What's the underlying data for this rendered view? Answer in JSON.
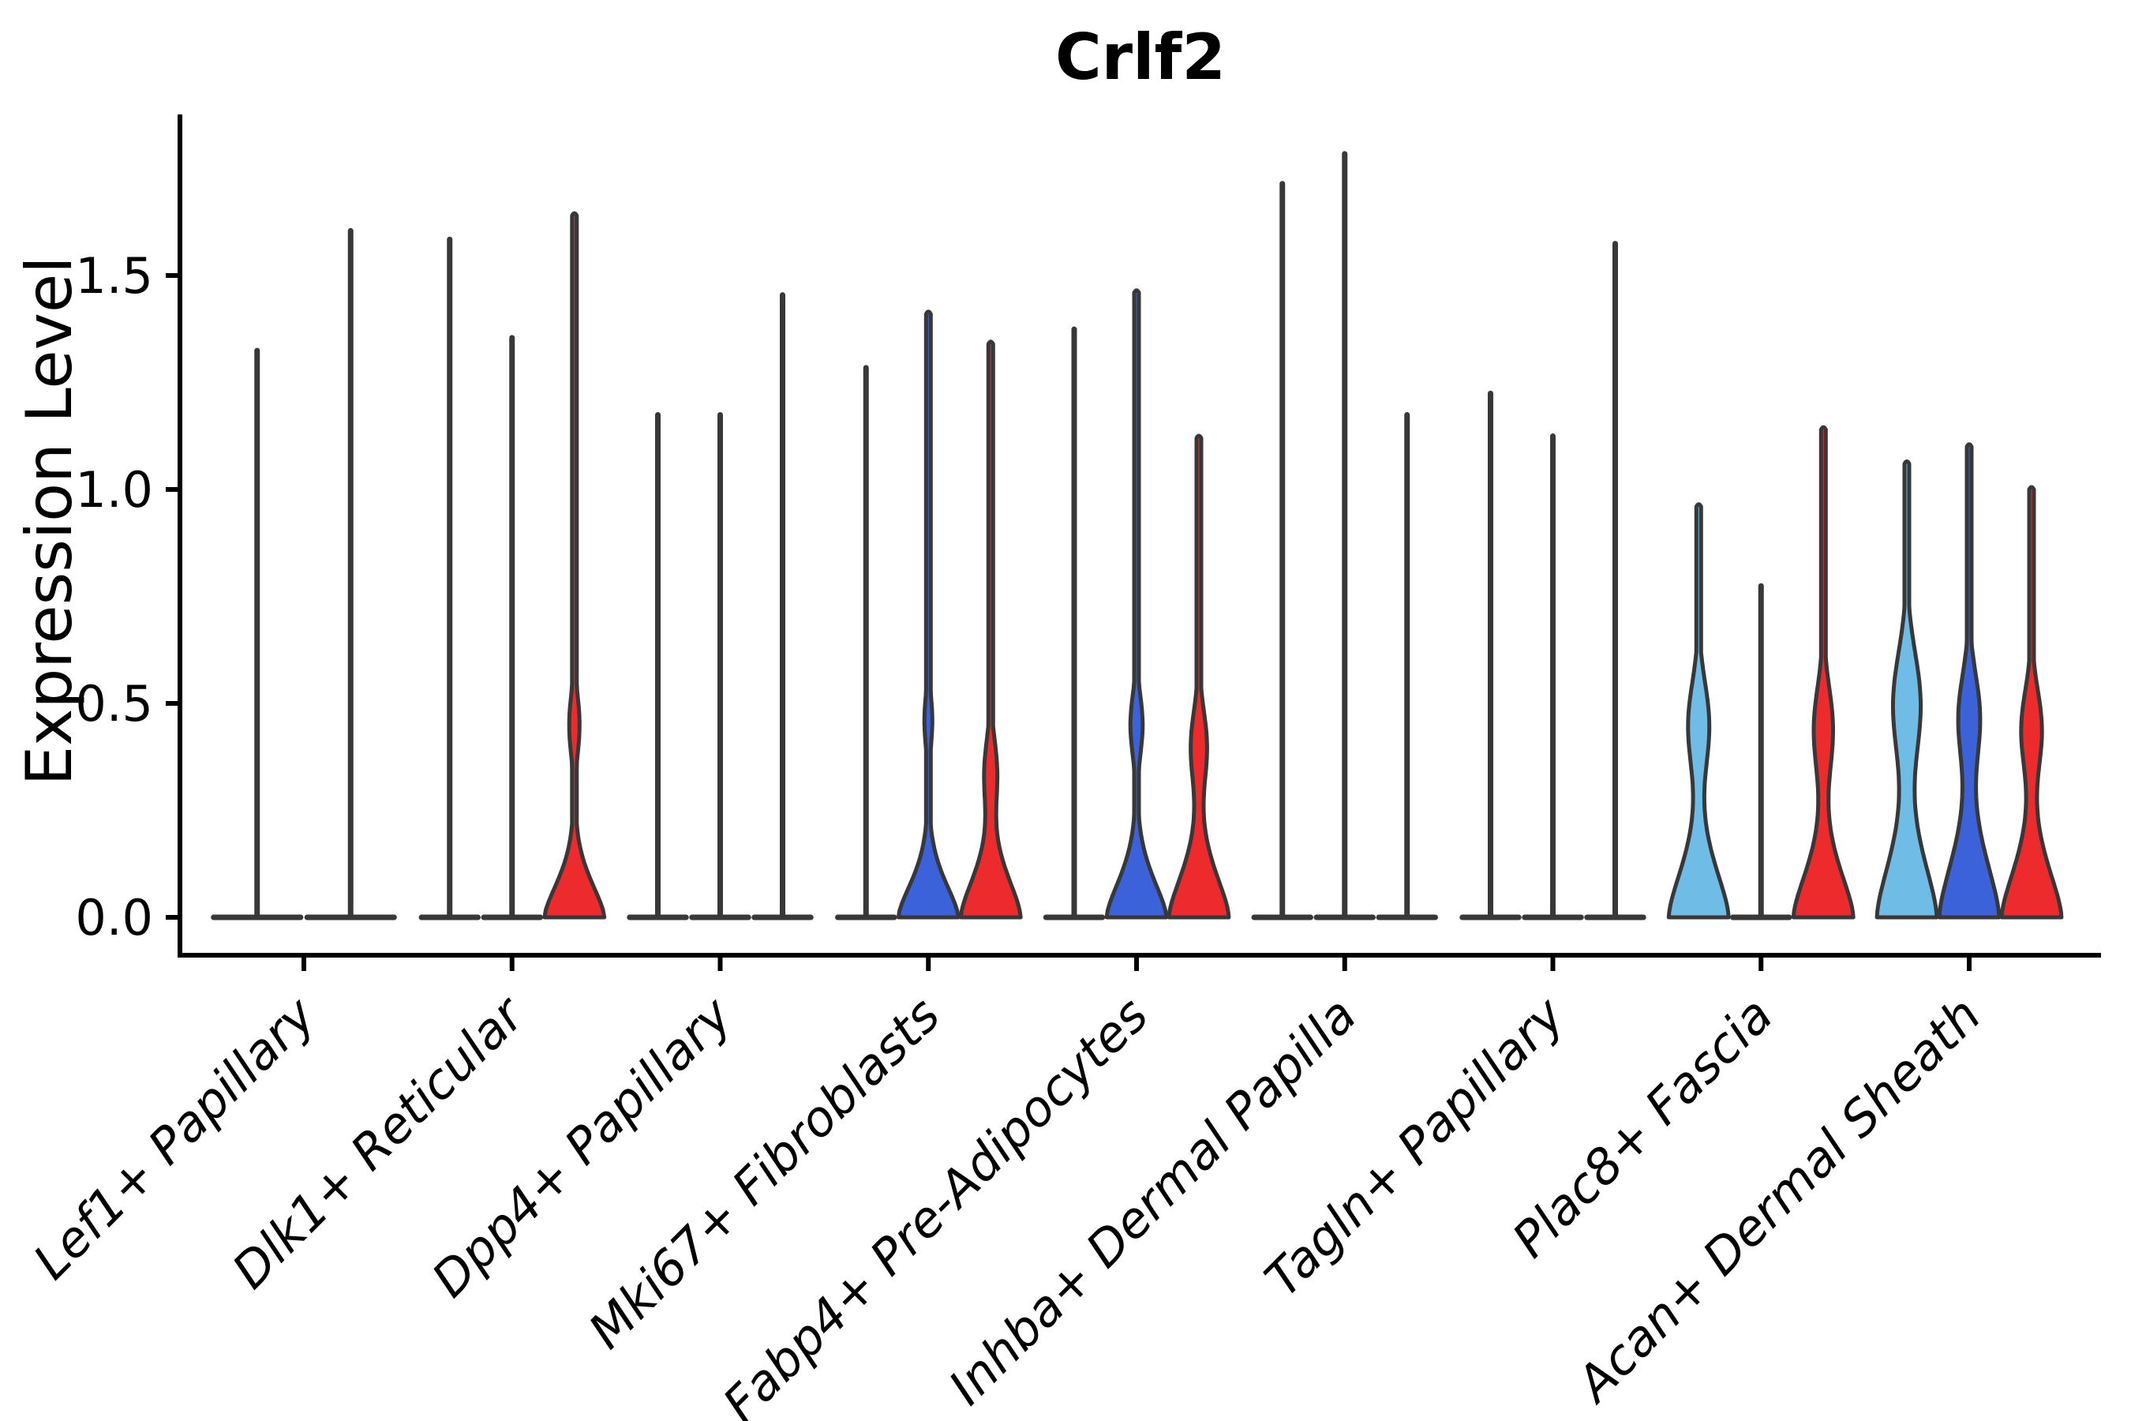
{
  "title": "Crlf2",
  "axes": {
    "ylabel": "Expression Level",
    "ytick_labels": [
      "0.0",
      "0.5",
      "1.0",
      "1.5"
    ]
  },
  "palette": {
    "lightblue": "#6FBDE6",
    "blue": "#3B62D8",
    "red": "#ED2B2D",
    "violin_outline": "#383838",
    "axis_color": "#000000"
  },
  "chart_data": {
    "type": "violin",
    "title": "Crlf2",
    "xlabel": "",
    "ylabel": "Expression Level",
    "ylim": [
      -0.09,
      1.88
    ],
    "ytick_values": [
      0.0,
      0.5,
      1.0,
      1.5
    ],
    "grid": false,
    "legend": "none",
    "categories": [
      "Lef1+ Papillary",
      "Dlk1+ Reticular",
      "Dpp4+ Papillary",
      "Mki67+ Fibroblasts",
      "Fabp4+ Pre-Adipocytes",
      "Inhba+ Dermal Papilla",
      "Tagln+ Papillary",
      "Plac8+ Fascia",
      "Acan+ Dermal Sheath"
    ],
    "note": "Each group holds violins for up to 3 conditions; violins with body:null are flattened at 0 (only a max-expression spike and a baseline bar are visible). peak = top of the violin tail in Expression Level units.",
    "groups": [
      {
        "category": "Lef1+ Papillary",
        "violins": [
          {
            "color": "#6FBDE6",
            "peak": 1.33,
            "body": null
          },
          {
            "color": "#3B62D8",
            "peak": 1.61,
            "body": null
          }
        ]
      },
      {
        "category": "Dlk1+ Reticular",
        "violins": [
          {
            "color": "#6FBDE6",
            "peak": 1.59,
            "body": null
          },
          {
            "color": "#3B62D8",
            "peak": 1.36,
            "body": null
          },
          {
            "color": "#ED2B2D",
            "peak": 1.64,
            "body": {
              "shoulder": 0.12,
              "bulge_center": 0.45,
              "bulge_sigma": 0.1,
              "bulge_frac": 0.17
            }
          }
        ]
      },
      {
        "category": "Dpp4+ Papillary",
        "violins": [
          {
            "color": "#6FBDE6",
            "peak": 1.18,
            "body": null
          },
          {
            "color": "#3B62D8",
            "peak": 1.18,
            "body": null
          },
          {
            "color": "#ED2B2D",
            "peak": 1.46,
            "body": null
          }
        ]
      },
      {
        "category": "Mki67+ Fibroblasts",
        "violins": [
          {
            "color": "#6FBDE6",
            "peak": 1.29,
            "body": null
          },
          {
            "color": "#3B62D8",
            "peak": 1.41,
            "body": {
              "shoulder": 0.12,
              "bulge_center": 0.46,
              "bulge_sigma": 0.09,
              "bulge_frac": 0.13
            }
          },
          {
            "color": "#ED2B2D",
            "peak": 1.34,
            "body": {
              "shoulder": 0.14,
              "bulge_center": 0.34,
              "bulge_sigma": 0.11,
              "bulge_frac": 0.2
            }
          }
        ]
      },
      {
        "category": "Fabp4+ Pre-Adipocytes",
        "violins": [
          {
            "color": "#6FBDE6",
            "peak": 1.38,
            "body": null
          },
          {
            "color": "#3B62D8",
            "peak": 1.46,
            "body": {
              "shoulder": 0.13,
              "bulge_center": 0.45,
              "bulge_sigma": 0.1,
              "bulge_frac": 0.2
            }
          },
          {
            "color": "#ED2B2D",
            "peak": 1.12,
            "body": {
              "shoulder": 0.15,
              "bulge_center": 0.4,
              "bulge_sigma": 0.12,
              "bulge_frac": 0.26
            }
          }
        ]
      },
      {
        "category": "Inhba+ Dermal Papilla",
        "violins": [
          {
            "color": "#6FBDE6",
            "peak": 1.72,
            "body": null
          },
          {
            "color": "#3B62D8",
            "peak": 1.79,
            "body": null
          },
          {
            "color": "#ED2B2D",
            "peak": 1.18,
            "body": null
          }
        ]
      },
      {
        "category": "Tagln+ Papillary",
        "violins": [
          {
            "color": "#6FBDE6",
            "peak": 1.23,
            "body": null
          },
          {
            "color": "#3B62D8",
            "peak": 1.13,
            "body": null
          },
          {
            "color": "#ED2B2D",
            "peak": 1.58,
            "body": null
          }
        ]
      },
      {
        "category": "Plac8+ Fascia",
        "violins": [
          {
            "color": "#6FBDE6",
            "peak": 0.96,
            "body": {
              "shoulder": 0.17,
              "bulge_center": 0.45,
              "bulge_sigma": 0.14,
              "bulge_frac": 0.34
            }
          },
          {
            "color": "#3B62D8",
            "peak": 0.78,
            "body": null
          },
          {
            "color": "#ED2B2D",
            "peak": 1.14,
            "body": {
              "shoulder": 0.16,
              "bulge_center": 0.44,
              "bulge_sigma": 0.14,
              "bulge_frac": 0.31
            }
          }
        ]
      },
      {
        "category": "Acan+ Dermal Sheath",
        "violins": [
          {
            "color": "#6FBDE6",
            "peak": 1.06,
            "body": {
              "shoulder": 0.2,
              "bulge_center": 0.5,
              "bulge_sigma": 0.17,
              "bulge_frac": 0.44
            }
          },
          {
            "color": "#3B62D8",
            "peak": 1.1,
            "body": {
              "shoulder": 0.2,
              "bulge_center": 0.47,
              "bulge_sigma": 0.14,
              "bulge_frac": 0.34
            }
          },
          {
            "color": "#ED2B2D",
            "peak": 1.0,
            "body": {
              "shoulder": 0.17,
              "bulge_center": 0.44,
              "bulge_sigma": 0.13,
              "bulge_frac": 0.33
            }
          }
        ]
      }
    ]
  }
}
